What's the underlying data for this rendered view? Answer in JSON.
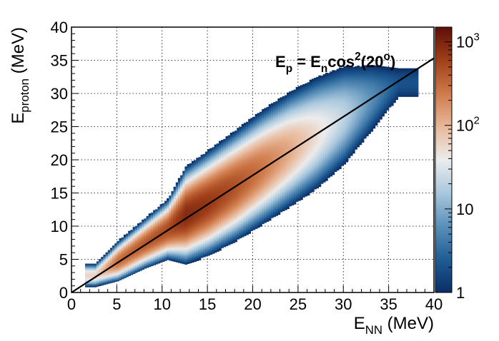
{
  "chart_data": {
    "type": "heatmap",
    "title": "",
    "xlabel": {
      "main": "E",
      "sub": "NN",
      "unit": " (MeV)"
    },
    "ylabel": {
      "main": "E",
      "sub": "proton",
      "unit": " (MeV)"
    },
    "xlim": [
      0,
      40
    ],
    "ylim": [
      0,
      40
    ],
    "x_ticks": [
      0,
      5,
      10,
      15,
      20,
      25,
      30,
      35,
      40
    ],
    "y_ticks": [
      0,
      5,
      10,
      15,
      20,
      25,
      30,
      35,
      40
    ],
    "grid": true,
    "colorbar": {
      "scale": "log",
      "range": [
        1,
        1500
      ],
      "ticks": [
        {
          "value": 1,
          "label": "1"
        },
        {
          "value": 10,
          "label": "10"
        },
        {
          "value": 100,
          "label_base": "10",
          "label_exp": "2"
        },
        {
          "value": 1000,
          "label_base": "10",
          "label_exp": "3"
        }
      ],
      "colors": [
        "#0b2d66",
        "#1f5d94",
        "#5b8fb9",
        "#a9c8dd",
        "#ececec",
        "#e8b89a",
        "#cf7a4a",
        "#a0401a",
        "#5e0f08"
      ]
    },
    "line": {
      "label": "E_p = E_n cos²(20°)",
      "slope": 0.883,
      "x_range": [
        0,
        40
      ],
      "color": "#000000"
    },
    "annotation": {
      "parts": [
        {
          "text": "E",
          "style": "normal"
        },
        {
          "text": "p",
          "style": "sub"
        },
        {
          "text": " = E",
          "style": "normal"
        },
        {
          "text": "n",
          "style": "sub"
        },
        {
          "text": "cos",
          "style": "normal"
        },
        {
          "text": "2",
          "style": "sup"
        },
        {
          "text": "(20",
          "style": "normal"
        },
        {
          "text": "o",
          "style": "sup"
        },
        {
          "text": ")",
          "style": "normal"
        }
      ]
    },
    "density_ridge": [
      {
        "x": 2.5,
        "y": 2.5,
        "halfwidth": 0.6,
        "peak": 60
      },
      {
        "x": 5,
        "y": 4.6,
        "halfwidth": 0.9,
        "peak": 300
      },
      {
        "x": 8,
        "y": 7.3,
        "halfwidth": 1.1,
        "peak": 400
      },
      {
        "x": 10.5,
        "y": 9.4,
        "halfwidth": 1.3,
        "peak": 500
      },
      {
        "x": 12.5,
        "y": 11.5,
        "halfwidth": 2.0,
        "peak": 900
      },
      {
        "x": 15,
        "y": 13.4,
        "halfwidth": 2.2,
        "peak": 700
      },
      {
        "x": 18,
        "y": 16.0,
        "halfwidth": 2.4,
        "peak": 450
      },
      {
        "x": 21,
        "y": 18.8,
        "halfwidth": 2.6,
        "peak": 250
      },
      {
        "x": 24,
        "y": 21.5,
        "halfwidth": 2.8,
        "peak": 120
      },
      {
        "x": 27,
        "y": 24.0,
        "halfwidth": 3.0,
        "peak": 50
      },
      {
        "x": 30,
        "y": 26.6,
        "halfwidth": 3.0,
        "peak": 20
      },
      {
        "x": 33,
        "y": 29.2,
        "halfwidth": 2.6,
        "peak": 6
      },
      {
        "x": 36,
        "y": 31.5,
        "halfwidth": 1.8,
        "peak": 2
      }
    ]
  }
}
